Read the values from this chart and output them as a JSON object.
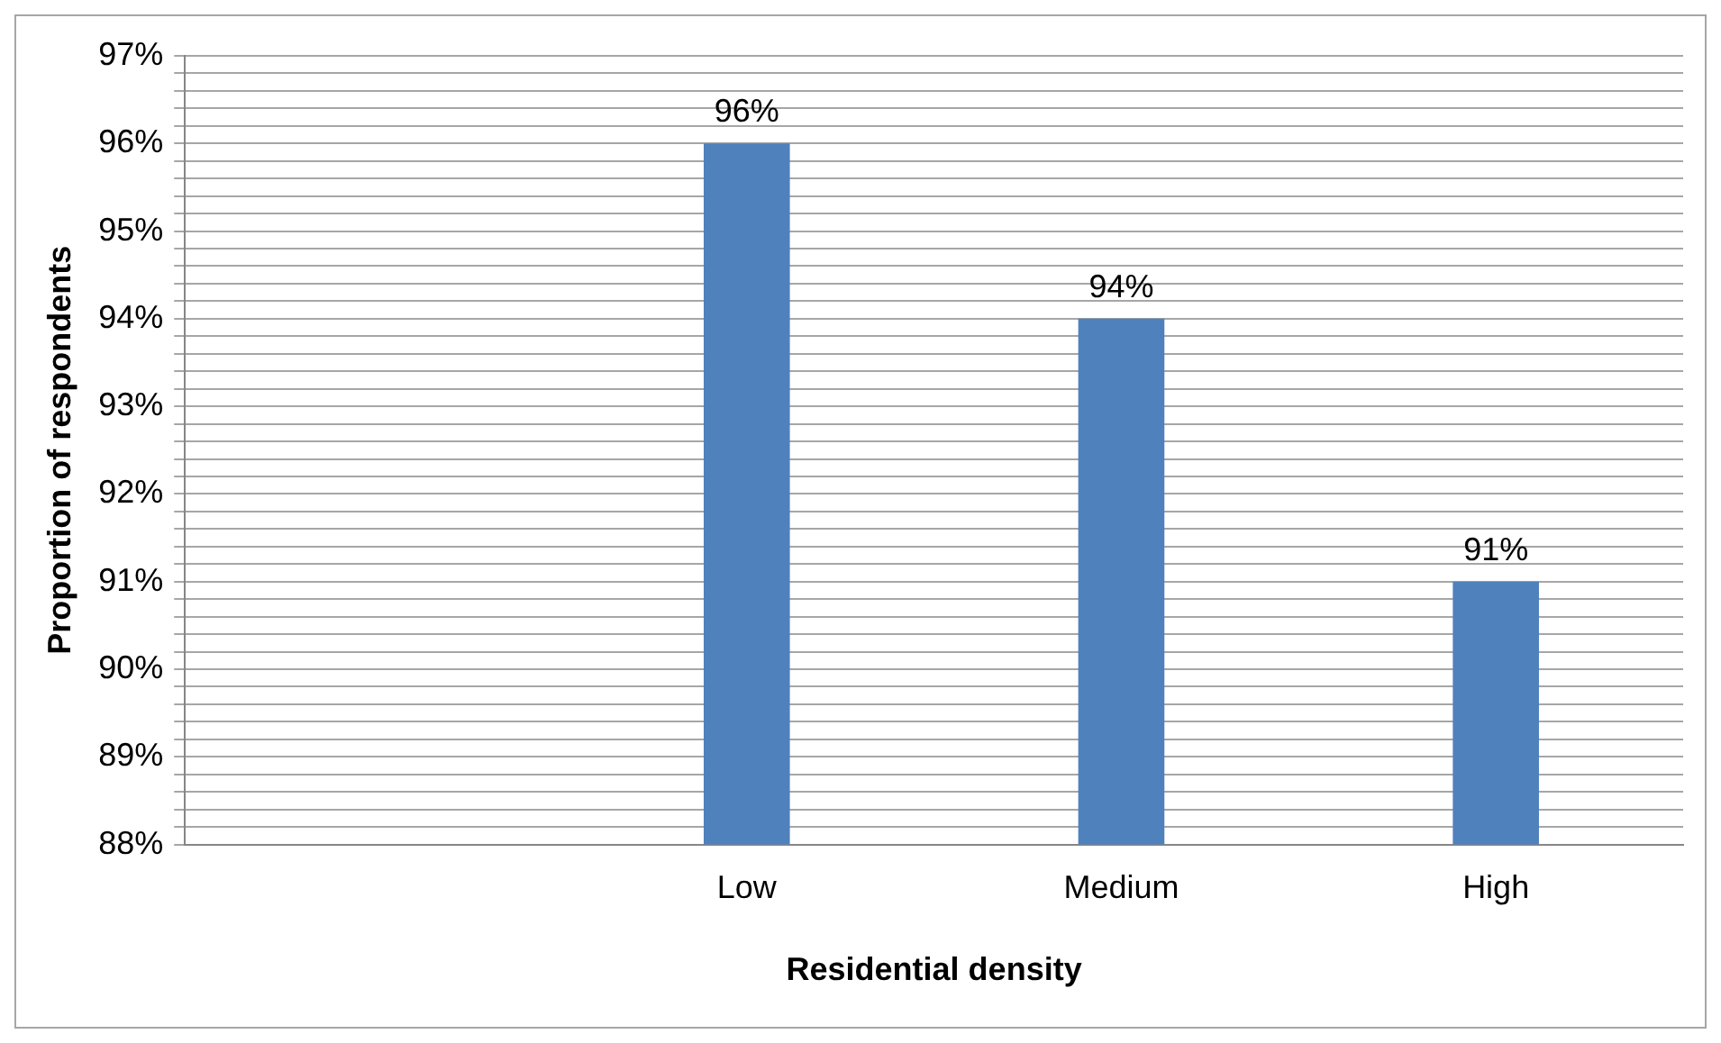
{
  "chart_data": {
    "type": "bar",
    "xlabel": "Residential density",
    "ylabel": "Proportion of respondents",
    "categories": [
      null,
      "Low",
      "Medium",
      "High"
    ],
    "values": [
      null,
      96,
      94,
      91
    ],
    "value_labels": [
      null,
      "96%",
      "94%",
      "91%"
    ],
    "color": "#4f81bd",
    "ylim": [
      88,
      97
    ],
    "yticks": [
      {
        "value": 88,
        "label": "88%"
      },
      {
        "value": 88.2,
        "label": null
      },
      {
        "value": 88.4,
        "label": null
      },
      {
        "value": 88.6,
        "label": null
      },
      {
        "value": 88.8,
        "label": null
      },
      {
        "value": 89,
        "label": "89%"
      },
      {
        "value": 89.2,
        "label": null
      },
      {
        "value": 89.4,
        "label": null
      },
      {
        "value": 89.6,
        "label": null
      },
      {
        "value": 89.8,
        "label": null
      },
      {
        "value": 90,
        "label": "90%"
      },
      {
        "value": 90.2,
        "label": null
      },
      {
        "value": 90.4,
        "label": null
      },
      {
        "value": 90.6,
        "label": null
      },
      {
        "value": 90.8,
        "label": null
      },
      {
        "value": 91,
        "label": "91%"
      },
      {
        "value": 91.2,
        "label": null
      },
      {
        "value": 91.4,
        "label": null
      },
      {
        "value": 91.6,
        "label": null
      },
      {
        "value": 91.8,
        "label": null
      },
      {
        "value": 92,
        "label": "92%"
      },
      {
        "value": 92.2,
        "label": null
      },
      {
        "value": 92.4,
        "label": null
      },
      {
        "value": 92.6,
        "label": null
      },
      {
        "value": 92.8,
        "label": null
      },
      {
        "value": 93,
        "label": "93%"
      },
      {
        "value": 93.2,
        "label": null
      },
      {
        "value": 93.4,
        "label": null
      },
      {
        "value": 93.6,
        "label": null
      },
      {
        "value": 93.8,
        "label": null
      },
      {
        "value": 94,
        "label": "94%"
      },
      {
        "value": 94.2,
        "label": null
      },
      {
        "value": 94.4,
        "label": null
      },
      {
        "value": 94.6,
        "label": null
      },
      {
        "value": 94.8,
        "label": null
      },
      {
        "value": 95,
        "label": "95%"
      },
      {
        "value": 95.2,
        "label": null
      },
      {
        "value": 95.4,
        "label": null
      },
      {
        "value": 95.6,
        "label": null
      },
      {
        "value": 95.8,
        "label": null
      },
      {
        "value": 96,
        "label": "96%"
      },
      {
        "value": 96.2,
        "label": null
      },
      {
        "value": 96.4,
        "label": null
      },
      {
        "value": 96.6,
        "label": null
      },
      {
        "value": 96.8,
        "label": null
      },
      {
        "value": 97,
        "label": "97%"
      }
    ],
    "grid": "y",
    "legend": false
  }
}
